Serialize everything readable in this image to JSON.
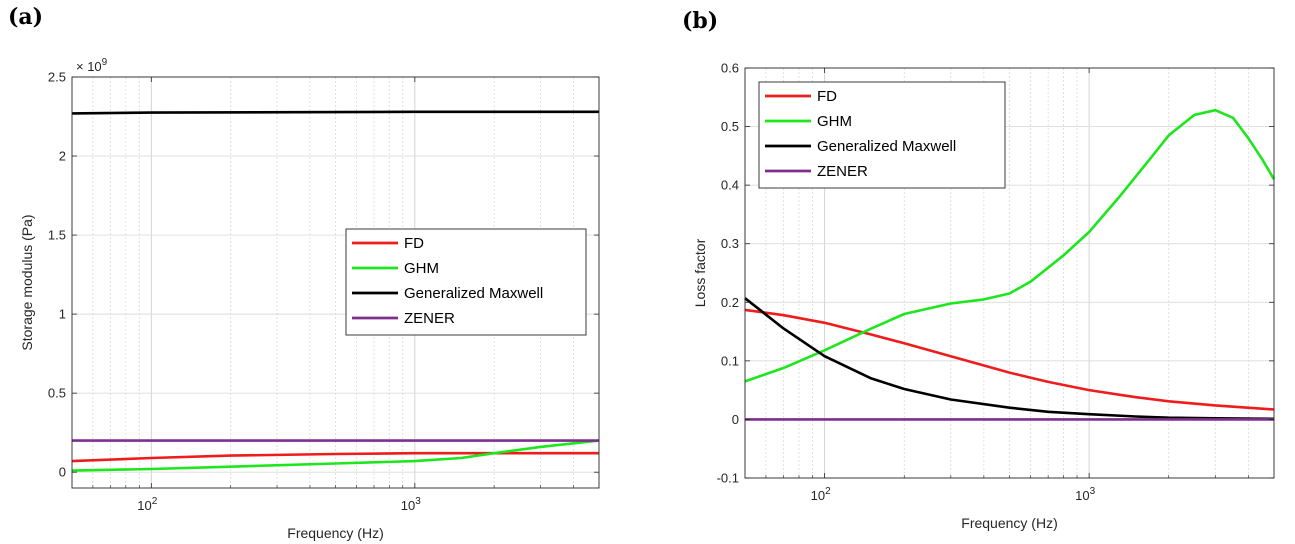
{
  "panels": [
    {
      "label": "(a)",
      "chart_data": {
        "type": "line",
        "xscale": "log",
        "xlim": [
          50,
          5000
        ],
        "ylim": [
          -0.1,
          2.5
        ],
        "ytick_scale_label": "× 10",
        "ytick_scale_exp": "9",
        "xlabel": "Frequency (Hz)",
        "ylabel": "Storage modulus (Pa)",
        "yticks": [
          0,
          0.5,
          1,
          1.5,
          2,
          2.5
        ],
        "ytick_labels": [
          "0",
          "0.5",
          "1",
          "1.5",
          "2",
          "2.5"
        ],
        "xticks": [
          100,
          1000
        ],
        "xtick_bases": [
          "10",
          "10"
        ],
        "xtick_exps": [
          "2",
          "3"
        ],
        "grid": true,
        "legend_placement": "center-right",
        "series": [
          {
            "name": "FD",
            "color": "#ee1c1c",
            "x": [
              50,
              100,
              200,
              500,
              1000,
              2000,
              5000
            ],
            "y": [
              0.07,
              0.09,
              0.105,
              0.115,
              0.12,
              0.12,
              0.12
            ]
          },
          {
            "name": "GHM",
            "color": "#1de61d",
            "x": [
              50,
              100,
              200,
              500,
              1000,
              1500,
              2000,
              3000,
              5000
            ],
            "y": [
              0.01,
              0.02,
              0.035,
              0.055,
              0.07,
              0.09,
              0.12,
              0.16,
              0.2
            ]
          },
          {
            "name": "Generalized Maxwell",
            "color": "#000000",
            "x": [
              50,
              100,
              1000,
              5000
            ],
            "y": [
              2.27,
              2.275,
              2.28,
              2.28
            ]
          },
          {
            "name": "ZENER",
            "color": "#7e2f8e",
            "x": [
              50,
              5000
            ],
            "y": [
              0.2,
              0.2
            ]
          }
        ]
      }
    },
    {
      "label": "(b)",
      "chart_data": {
        "type": "line",
        "xscale": "log",
        "xlim": [
          50,
          5000
        ],
        "ylim": [
          -0.1,
          0.6
        ],
        "xlabel": "Frequency (Hz)",
        "ylabel": "Loss factor",
        "yticks": [
          -0.1,
          0,
          0.1,
          0.2,
          0.3,
          0.4,
          0.5,
          0.6
        ],
        "ytick_labels": [
          "-0.1",
          "0",
          "0.1",
          "0.2",
          "0.3",
          "0.4",
          "0.5",
          "0.6"
        ],
        "xticks": [
          100,
          1000
        ],
        "xtick_bases": [
          "10",
          "10"
        ],
        "xtick_exps": [
          "2",
          "3"
        ],
        "grid": true,
        "legend_placement": "top-left",
        "series": [
          {
            "name": "FD",
            "color": "#ee1c1c",
            "x": [
              50,
              70,
              100,
              150,
              200,
              300,
              500,
              700,
              1000,
              1500,
              2000,
              3000,
              5000
            ],
            "y": [
              0.187,
              0.178,
              0.165,
              0.145,
              0.13,
              0.108,
              0.08,
              0.064,
              0.05,
              0.038,
              0.031,
              0.024,
              0.017
            ]
          },
          {
            "name": "GHM",
            "color": "#1de61d",
            "x": [
              50,
              70,
              100,
              150,
              200,
              300,
              400,
              500,
              600,
              800,
              1000,
              1300,
              1700,
              2000,
              2500,
              3000,
              3500,
              4000,
              4500,
              5000
            ],
            "y": [
              0.065,
              0.088,
              0.118,
              0.155,
              0.18,
              0.198,
              0.205,
              0.215,
              0.235,
              0.28,
              0.32,
              0.38,
              0.445,
              0.485,
              0.52,
              0.528,
              0.515,
              0.48,
              0.445,
              0.41
            ]
          },
          {
            "name": "Generalized Maxwell",
            "color": "#000000",
            "x": [
              50,
              70,
              100,
              150,
              200,
              300,
              500,
              700,
              1000,
              1500,
              2000,
              3000,
              5000
            ],
            "y": [
              0.207,
              0.155,
              0.108,
              0.07,
              0.052,
              0.034,
              0.02,
              0.013,
              0.009,
              0.005,
              0.003,
              0.002,
              0.001
            ]
          },
          {
            "name": "ZENER",
            "color": "#7e2f8e",
            "x": [
              50,
              5000
            ],
            "y": [
              0.0,
              0.0
            ]
          }
        ]
      }
    }
  ]
}
